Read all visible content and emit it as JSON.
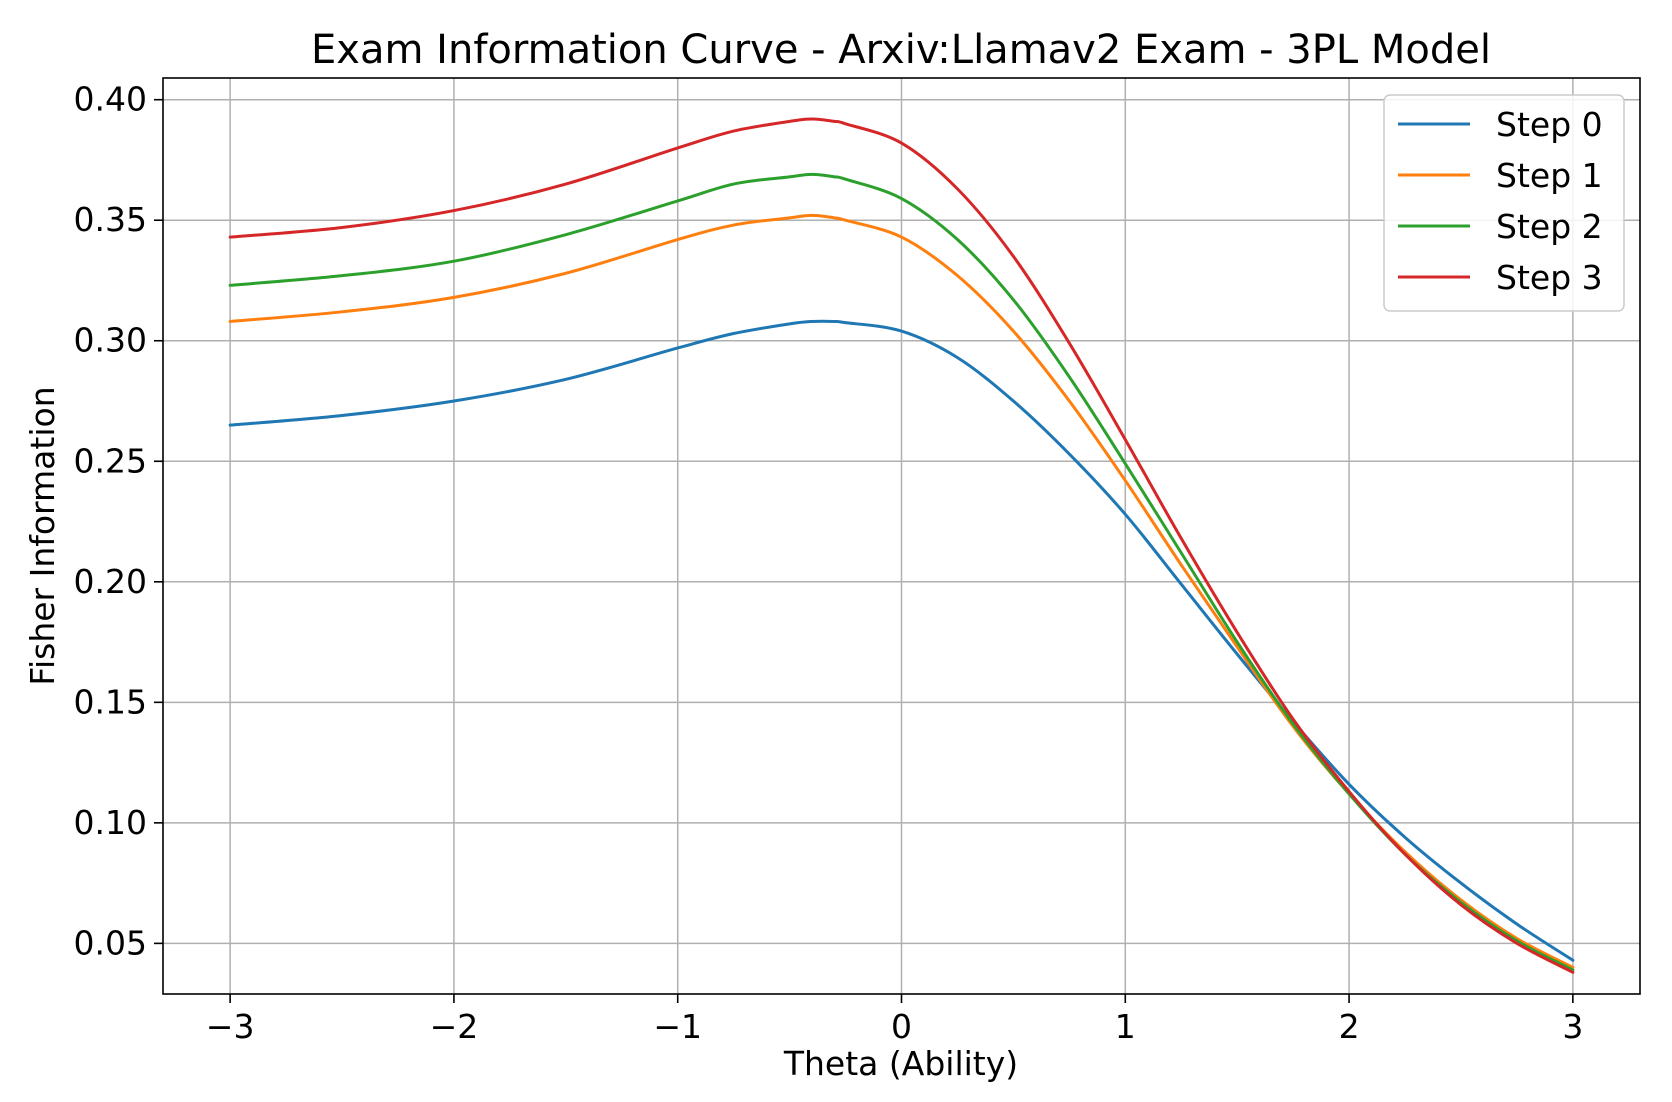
{
  "chart_data": {
    "type": "line",
    "title": "Exam Information Curve  - Arxiv:Llamav2 Exam - 3PL Model",
    "xlabel": "Theta (Ability)",
    "ylabel": "Fisher Information",
    "xlim": [
      -3.3,
      3.3
    ],
    "ylim": [
      0.029,
      0.409
    ],
    "xticks": [
      -3,
      -2,
      -1,
      0,
      1,
      2,
      3
    ],
    "xtick_labels": [
      "−3",
      "−2",
      "−1",
      "0",
      "1",
      "2",
      "3"
    ],
    "yticks": [
      0.05,
      0.1,
      0.15,
      0.2,
      0.25,
      0.3,
      0.35,
      0.4
    ],
    "ytick_labels": [
      "0.05",
      "0.10",
      "0.15",
      "0.20",
      "0.25",
      "0.30",
      "0.35",
      "0.40"
    ],
    "grid": true,
    "legend_position": "top-right",
    "x": [
      -3.0,
      -2.5,
      -2.0,
      -1.5,
      -1.0,
      -0.75,
      -0.5,
      -0.4,
      -0.3,
      -0.25,
      0.0,
      0.25,
      0.5,
      0.75,
      1.0,
      1.25,
      1.5,
      1.75,
      2.0,
      2.25,
      2.5,
      2.75,
      3.0
    ],
    "series": [
      {
        "name": "Step 0",
        "color": "#1f77b4",
        "values": [
          0.265,
          0.269,
          0.275,
          0.284,
          0.297,
          0.303,
          0.307,
          0.308,
          0.308,
          0.3075,
          0.304,
          0.293,
          0.275,
          0.253,
          0.228,
          0.199,
          0.17,
          0.142,
          0.116,
          0.094,
          0.075,
          0.058,
          0.043
        ]
      },
      {
        "name": "Step 1",
        "color": "#ff7f0e",
        "values": [
          0.308,
          0.312,
          0.318,
          0.328,
          0.342,
          0.348,
          0.351,
          0.352,
          0.351,
          0.35,
          0.343,
          0.327,
          0.304,
          0.275,
          0.242,
          0.207,
          0.173,
          0.14,
          0.112,
          0.088,
          0.068,
          0.052,
          0.04
        ]
      },
      {
        "name": "Step 2",
        "color": "#2ca02c",
        "values": [
          0.323,
          0.327,
          0.333,
          0.344,
          0.358,
          0.365,
          0.368,
          0.369,
          0.368,
          0.367,
          0.359,
          0.342,
          0.317,
          0.285,
          0.249,
          0.212,
          0.175,
          0.141,
          0.112,
          0.087,
          0.067,
          0.051,
          0.039
        ]
      },
      {
        "name": "Step 3",
        "color": "#d62728",
        "values": [
          0.343,
          0.347,
          0.354,
          0.365,
          0.38,
          0.387,
          0.391,
          0.392,
          0.391,
          0.39,
          0.382,
          0.363,
          0.335,
          0.299,
          0.259,
          0.218,
          0.179,
          0.143,
          0.113,
          0.087,
          0.066,
          0.05,
          0.038
        ]
      }
    ]
  }
}
